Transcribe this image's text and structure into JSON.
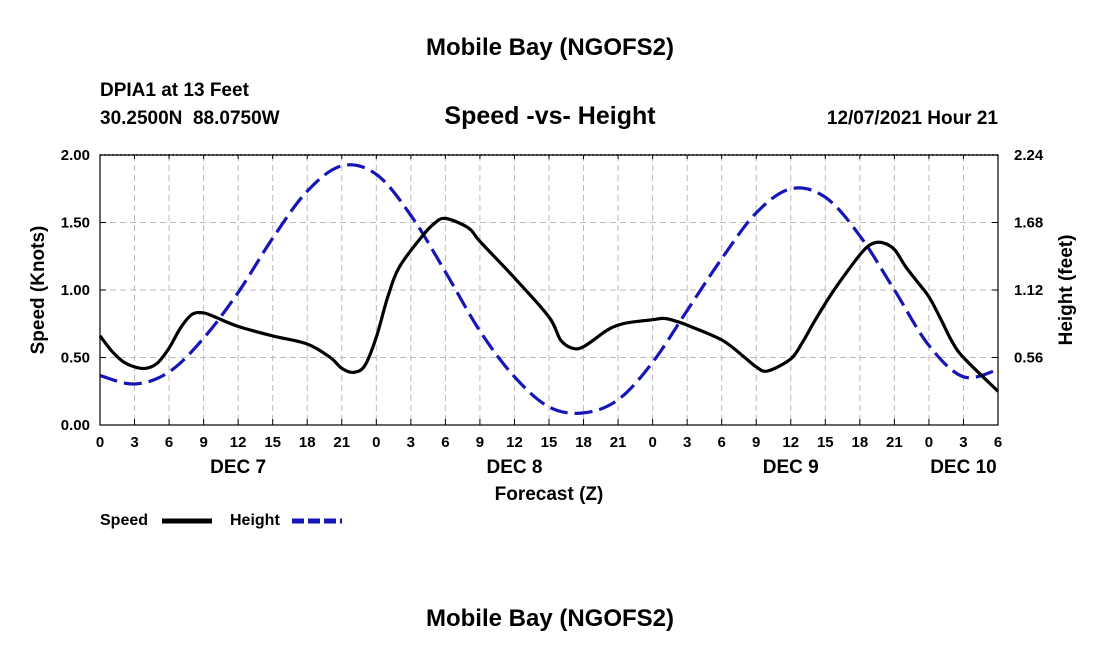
{
  "page": {
    "title": "Mobile Bay (NGOFS2)",
    "footer_title": "Mobile Bay (NGOFS2)",
    "station_line": "DPIA1 at 13 Feet",
    "coords_line": "30.2500N  88.0750W",
    "subtitle": "Speed -vs- Height",
    "timestamp": "12/07/2021 Hour 21"
  },
  "chart_data": {
    "type": "line",
    "title": "Speed -vs- Height",
    "xlabel": "Forecast (Z)",
    "ylabel": "Speed (Knots)",
    "y2label": "Height (feet)",
    "xlim": [
      0,
      78
    ],
    "ylim": [
      0,
      2.0
    ],
    "y2lim": [
      0,
      2.24
    ],
    "x_tick_step": 3,
    "x_tick_labels": [
      "0",
      "3",
      "6",
      "9",
      "12",
      "15",
      "18",
      "21",
      "0",
      "3",
      "6",
      "9",
      "12",
      "15",
      "18",
      "21",
      "0",
      "3",
      "6",
      "9",
      "12",
      "15",
      "18",
      "21",
      "0",
      "3",
      "6"
    ],
    "y_ticks": [
      {
        "value": 0.0,
        "label": "0.00"
      },
      {
        "value": 0.5,
        "label": "0.50"
      },
      {
        "value": 1.0,
        "label": "1.00"
      },
      {
        "value": 1.5,
        "label": "1.50"
      },
      {
        "value": 2.0,
        "label": "2.00"
      }
    ],
    "y2_ticks": [
      {
        "value": 0.56,
        "label": "0.56"
      },
      {
        "value": 1.12,
        "label": "1.12"
      },
      {
        "value": 1.68,
        "label": "1.68"
      },
      {
        "value": 2.24,
        "label": "2.24"
      }
    ],
    "date_labels": [
      {
        "x": 12,
        "label": "DEC 7"
      },
      {
        "x": 36,
        "label": "DEC 8"
      },
      {
        "x": 60,
        "label": "DEC 9"
      },
      {
        "x": 75,
        "label": "DEC 10"
      }
    ],
    "grid": true,
    "legend_position": "bottom-left",
    "series": [
      {
        "name": "Speed",
        "axis": "left",
        "color": "#000000",
        "style": "solid",
        "x": [
          0,
          1,
          2,
          3,
          4,
          5,
          6,
          7,
          8,
          9,
          10,
          12,
          15,
          18,
          20,
          21,
          22,
          23,
          24,
          25,
          26,
          28,
          29,
          30,
          32,
          33,
          36,
          39,
          40,
          41,
          42,
          44,
          45,
          46,
          48,
          49,
          50,
          51,
          54,
          56,
          57,
          58,
          60,
          61,
          62,
          63,
          64,
          66,
          67,
          68,
          69,
          70,
          71,
          72,
          73,
          74,
          75,
          78
        ],
        "values": [
          0.66,
          0.55,
          0.47,
          0.43,
          0.42,
          0.46,
          0.57,
          0.72,
          0.82,
          0.83,
          0.8,
          0.73,
          0.66,
          0.6,
          0.5,
          0.42,
          0.39,
          0.44,
          0.65,
          0.95,
          1.17,
          1.4,
          1.49,
          1.53,
          1.46,
          1.36,
          1.09,
          0.8,
          0.63,
          0.57,
          0.58,
          0.7,
          0.74,
          0.76,
          0.78,
          0.79,
          0.77,
          0.74,
          0.63,
          0.5,
          0.43,
          0.4,
          0.49,
          0.61,
          0.76,
          0.9,
          1.03,
          1.26,
          1.34,
          1.35,
          1.3,
          1.17,
          1.06,
          0.95,
          0.79,
          0.62,
          0.5,
          0.25
        ]
      },
      {
        "name": "Height",
        "axis": "right",
        "color": "#1616b8",
        "style": "dashed",
        "x": [
          0,
          3,
          6,
          9,
          12,
          15,
          18,
          21,
          24,
          27,
          30,
          33,
          36,
          39,
          42,
          45,
          48,
          51,
          54,
          57,
          60,
          63,
          66,
          69,
          72,
          75,
          78
        ],
        "values": [
          0.41,
          0.34,
          0.44,
          0.72,
          1.1,
          1.55,
          1.94,
          2.15,
          2.08,
          1.74,
          1.27,
          0.78,
          0.4,
          0.15,
          0.1,
          0.21,
          0.52,
          0.95,
          1.38,
          1.76,
          1.96,
          1.89,
          1.57,
          1.12,
          0.66,
          0.4,
          0.46
        ]
      }
    ]
  }
}
